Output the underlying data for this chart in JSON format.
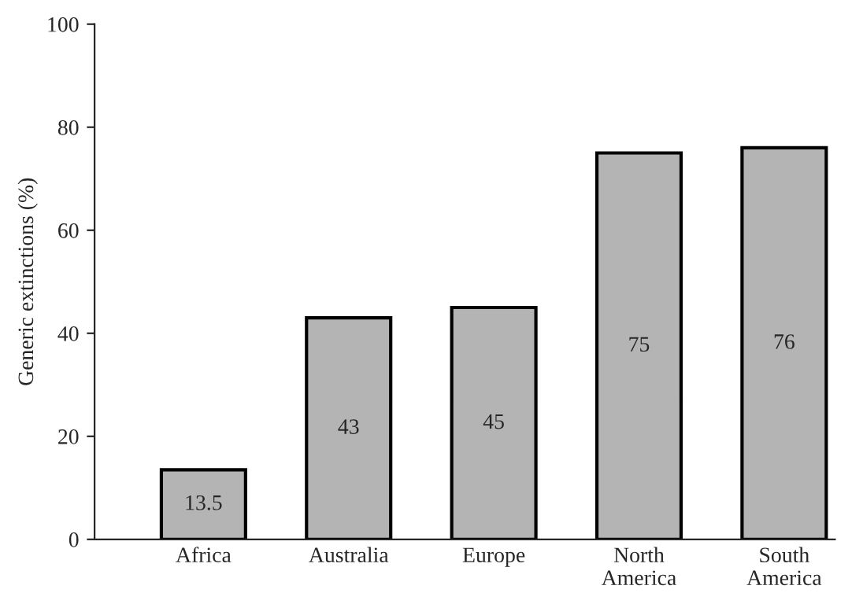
{
  "chart_data": {
    "type": "bar",
    "ylabel": "Generic extinctions (%)",
    "categories": [
      "Africa",
      "Australia",
      "Europe",
      "North\nAmerica",
      "South\nAmerica"
    ],
    "values": [
      13.5,
      43,
      45,
      75,
      76
    ],
    "color": "#b4b4b4",
    "ylim": [
      0,
      100
    ],
    "yticks": [
      0,
      20,
      40,
      60,
      80,
      100
    ],
    "grid": false,
    "data_labels": true
  }
}
